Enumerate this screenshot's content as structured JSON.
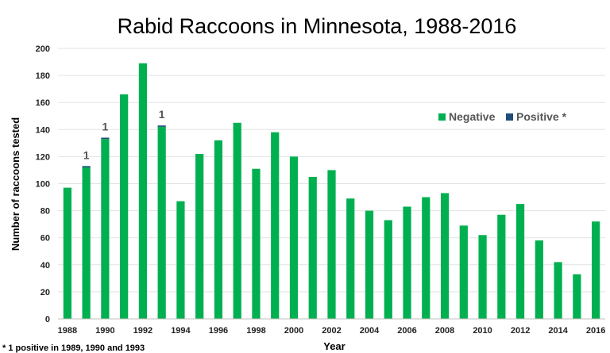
{
  "chart_data": {
    "type": "bar",
    "stacked": true,
    "title": "Rabid Raccoons in Minnesota, 1988-2016",
    "xlabel": "Year",
    "ylabel": "Number of raccoons tested",
    "ylim": [
      0,
      200
    ],
    "yticks": [
      "0",
      "20",
      "40",
      "60",
      "80",
      "100",
      "120",
      "140",
      "160",
      "180",
      "200"
    ],
    "categories": [
      1988,
      1989,
      1990,
      1991,
      1992,
      1993,
      1994,
      1995,
      1996,
      1997,
      1998,
      1999,
      2000,
      2001,
      2002,
      2003,
      2004,
      2005,
      2006,
      2007,
      2008,
      2009,
      2010,
      2011,
      2012,
      2013,
      2014,
      2015,
      2016
    ],
    "xtick_labels": [
      "1988",
      "1990",
      "1992",
      "1994",
      "1996",
      "1998",
      "2000",
      "2002",
      "2004",
      "2006",
      "2008",
      "2010",
      "2012",
      "2014",
      "2016"
    ],
    "series": [
      {
        "name": "Negative",
        "color": "#00b050",
        "values": [
          97,
          112,
          133,
          166,
          189,
          142,
          87,
          122,
          132,
          145,
          111,
          138,
          120,
          105,
          110,
          89,
          80,
          73,
          83,
          90,
          93,
          69,
          62,
          77,
          85,
          58,
          42,
          33,
          72
        ]
      },
      {
        "name": "Positive *",
        "color": "#1f4e79",
        "values": [
          0,
          1,
          1,
          0,
          0,
          1,
          0,
          0,
          0,
          0,
          0,
          0,
          0,
          0,
          0,
          0,
          0,
          0,
          0,
          0,
          0,
          0,
          0,
          0,
          0,
          0,
          0,
          0,
          0
        ]
      }
    ],
    "data_labels": [
      {
        "year": 1989,
        "text": "1"
      },
      {
        "year": 1990,
        "text": "1"
      },
      {
        "year": 1993,
        "text": "1"
      }
    ],
    "legend_position": "right",
    "grid": true,
    "footnote": "* 1 positive in 1989, 1990 and 1993"
  }
}
